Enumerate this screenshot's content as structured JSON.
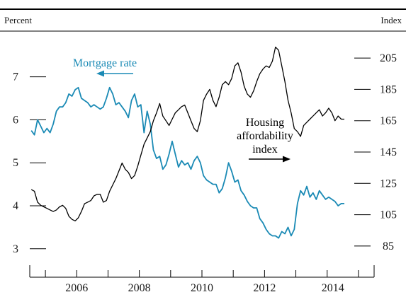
{
  "chart_data": {
    "type": "line",
    "left_axis": {
      "unit_label": "Percent",
      "ticks": [
        3,
        4,
        5,
        6,
        7
      ],
      "ylim": [
        2.7,
        7.8
      ]
    },
    "right_axis": {
      "unit_label": "Index",
      "ticks": [
        85,
        105,
        125,
        145,
        165,
        185,
        205
      ],
      "ylim": [
        75,
        215
      ]
    },
    "x_axis": {
      "tick_labels": [
        "2006",
        "2008",
        "2010",
        "2012",
        "2014"
      ],
      "label_years": [
        2006,
        2008,
        2010,
        2012,
        2014
      ],
      "minor_tick_years": [
        2005,
        2006,
        2007,
        2008,
        2009,
        2010,
        2011,
        2012,
        2013,
        2014,
        2015
      ],
      "xlim": [
        2004.5,
        2015.5
      ]
    },
    "annotations": {
      "mortgage_label": "Mortgage rate",
      "housing_label_lines": [
        "Housing",
        "affordability",
        "index"
      ]
    },
    "colors": {
      "mortgage": "#1a8ab5",
      "housing": "#000000",
      "axis": "#000000"
    },
    "series": [
      {
        "name": "Mortgage rate",
        "axis": "left",
        "x": [
          2004.55,
          2004.65,
          2004.75,
          2004.85,
          2004.95,
          2005.05,
          2005.15,
          2005.25,
          2005.35,
          2005.45,
          2005.55,
          2005.65,
          2005.75,
          2005.85,
          2005.95,
          2006.05,
          2006.15,
          2006.25,
          2006.35,
          2006.45,
          2006.55,
          2006.65,
          2006.75,
          2006.85,
          2006.95,
          2007.05,
          2007.15,
          2007.25,
          2007.35,
          2007.45,
          2007.55,
          2007.65,
          2007.75,
          2007.85,
          2007.95,
          2008.05,
          2008.15,
          2008.25,
          2008.35,
          2008.45,
          2008.55,
          2008.65,
          2008.75,
          2008.85,
          2008.95,
          2009.05,
          2009.15,
          2009.25,
          2009.35,
          2009.45,
          2009.55,
          2009.65,
          2009.75,
          2009.85,
          2009.95,
          2010.05,
          2010.15,
          2010.25,
          2010.35,
          2010.45,
          2010.55,
          2010.65,
          2010.75,
          2010.85,
          2010.95,
          2011.05,
          2011.15,
          2011.25,
          2011.35,
          2011.45,
          2011.55,
          2011.65,
          2011.75,
          2011.85,
          2011.95,
          2012.05,
          2012.15,
          2012.25,
          2012.35,
          2012.45,
          2012.55,
          2012.65,
          2012.75,
          2012.85,
          2012.95,
          2013.05,
          2013.15,
          2013.25,
          2013.35,
          2013.45,
          2013.55,
          2013.65,
          2013.75,
          2013.85,
          2013.95,
          2014.05,
          2014.15,
          2014.25,
          2014.35,
          2014.45,
          2014.55
        ],
        "values": [
          5.75,
          5.65,
          6.0,
          5.85,
          5.7,
          5.8,
          5.7,
          5.9,
          6.2,
          6.3,
          6.3,
          6.4,
          6.6,
          6.55,
          6.7,
          6.75,
          6.5,
          6.45,
          6.4,
          6.3,
          6.35,
          6.3,
          6.25,
          6.3,
          6.5,
          6.75,
          6.6,
          6.35,
          6.4,
          6.3,
          6.2,
          6.05,
          6.45,
          6.6,
          6.3,
          6.35,
          5.7,
          6.2,
          5.9,
          5.3,
          5.1,
          5.15,
          4.85,
          4.95,
          5.2,
          5.5,
          5.2,
          4.9,
          5.05,
          4.95,
          5.0,
          4.85,
          5.05,
          5.15,
          5.0,
          4.7,
          4.6,
          4.55,
          4.5,
          4.5,
          4.3,
          4.4,
          4.65,
          5.0,
          4.8,
          4.55,
          4.6,
          4.35,
          4.25,
          4.1,
          4.0,
          3.95,
          3.95,
          3.7,
          3.6,
          3.45,
          3.35,
          3.3,
          3.3,
          3.25,
          3.4,
          3.35,
          3.5,
          3.3,
          3.45,
          4.05,
          4.35,
          4.25,
          4.45,
          4.2,
          4.3,
          4.15,
          4.35,
          4.25,
          4.15,
          4.2,
          4.15,
          4.1,
          4.0,
          4.05,
          4.05
        ]
      },
      {
        "name": "Housing affordability index",
        "axis": "right",
        "x": [
          2004.55,
          2004.65,
          2004.75,
          2004.85,
          2004.95,
          2005.05,
          2005.15,
          2005.25,
          2005.35,
          2005.45,
          2005.55,
          2005.65,
          2005.75,
          2005.85,
          2005.95,
          2006.05,
          2006.15,
          2006.25,
          2006.35,
          2006.45,
          2006.55,
          2006.65,
          2006.75,
          2006.85,
          2006.95,
          2007.05,
          2007.15,
          2007.25,
          2007.35,
          2007.45,
          2007.55,
          2007.65,
          2007.75,
          2007.85,
          2007.95,
          2008.05,
          2008.15,
          2008.25,
          2008.35,
          2008.45,
          2008.55,
          2008.65,
          2008.75,
          2008.85,
          2008.95,
          2009.05,
          2009.15,
          2009.25,
          2009.35,
          2009.45,
          2009.55,
          2009.65,
          2009.75,
          2009.85,
          2009.95,
          2010.05,
          2010.15,
          2010.25,
          2010.35,
          2010.45,
          2010.55,
          2010.65,
          2010.75,
          2010.85,
          2010.95,
          2011.05,
          2011.15,
          2011.25,
          2011.35,
          2011.45,
          2011.55,
          2011.65,
          2011.75,
          2011.85,
          2011.95,
          2012.05,
          2012.15,
          2012.25,
          2012.35,
          2012.45,
          2012.55,
          2012.65,
          2012.75,
          2012.85,
          2012.95,
          2013.05,
          2013.15,
          2013.25,
          2013.35,
          2013.45,
          2013.55,
          2013.65,
          2013.75,
          2013.85,
          2013.95,
          2014.05,
          2014.15,
          2014.25,
          2014.35,
          2014.45,
          2014.55
        ],
        "values": [
          121,
          120,
          113,
          111,
          110,
          109,
          108,
          107,
          108,
          110,
          111,
          109,
          104,
          102,
          101,
          103,
          107,
          112,
          113,
          114,
          117,
          118,
          118,
          113,
          114,
          120,
          124,
          128,
          133,
          138,
          134,
          132,
          128,
          130,
          136,
          143,
          150,
          154,
          158,
          165,
          170,
          176,
          168,
          165,
          162,
          166,
          170,
          172,
          174,
          175,
          170,
          165,
          160,
          158,
          165,
          178,
          182,
          185,
          178,
          174,
          180,
          188,
          190,
          188,
          192,
          200,
          202,
          196,
          187,
          182,
          180,
          184,
          190,
          195,
          198,
          200,
          199,
          203,
          212,
          210,
          200,
          190,
          178,
          170,
          160,
          158,
          155,
          162,
          164,
          166,
          168,
          170,
          172,
          168,
          170,
          173,
          170,
          165,
          168,
          166,
          166
        ]
      }
    ]
  }
}
